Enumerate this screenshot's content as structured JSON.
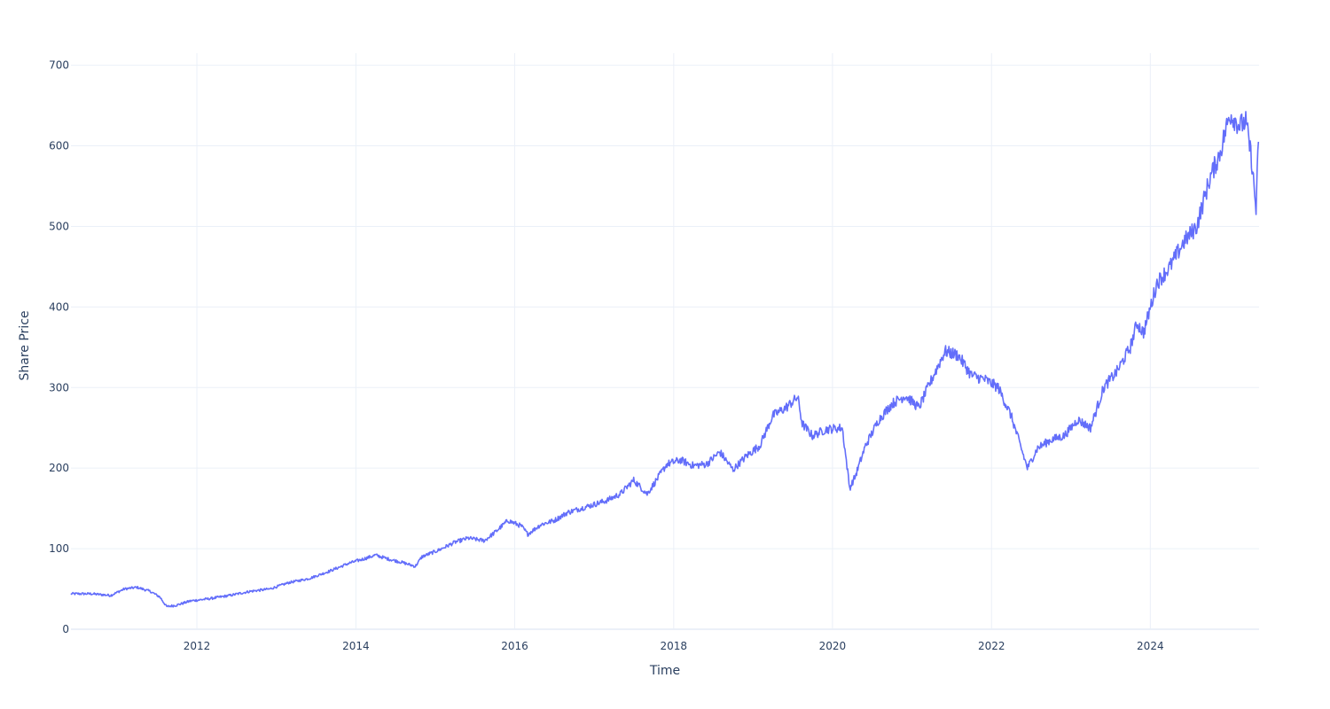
{
  "chart_data": {
    "type": "line",
    "title": "",
    "xlabel": "Time",
    "ylabel": "Share Price",
    "x_type": "date",
    "xlim": [
      "2010-06-01",
      "2025-05-15"
    ],
    "ylim": [
      0,
      715
    ],
    "x_ticks": [
      "2012",
      "2014",
      "2016",
      "2018",
      "2020",
      "2022",
      "2024"
    ],
    "y_ticks": [
      0,
      100,
      200,
      300,
      400,
      500,
      600,
      700
    ],
    "grid": true,
    "legend": "none",
    "line_color": "#636efa",
    "series": [
      {
        "x": [
          "2010-06-01",
          "2010-09-01",
          "2010-12-01",
          "2011-02-01",
          "2011-04-01",
          "2011-06-01",
          "2011-07-15",
          "2011-08-15",
          "2011-10-01",
          "2011-12-01",
          "2012-03-01",
          "2012-06-01",
          "2012-09-01",
          "2012-12-01",
          "2013-03-01",
          "2013-06-01",
          "2013-09-01",
          "2013-12-01",
          "2014-02-15",
          "2014-04-01",
          "2014-06-01",
          "2014-08-01",
          "2014-10-01",
          "2014-11-01",
          "2015-01-15",
          "2015-04-01",
          "2015-06-01",
          "2015-08-15",
          "2015-10-01",
          "2015-12-01",
          "2016-02-01",
          "2016-03-01",
          "2016-05-01",
          "2016-07-01",
          "2016-09-01",
          "2016-11-01",
          "2017-01-01",
          "2017-03-01",
          "2017-05-01",
          "2017-07-01",
          "2017-09-01",
          "2017-10-01",
          "2017-12-01",
          "2018-02-01",
          "2018-04-01",
          "2018-06-01",
          "2018-08-01",
          "2018-10-01",
          "2018-12-01",
          "2019-02-01",
          "2019-04-01",
          "2019-06-01",
          "2019-07-25",
          "2019-08-15",
          "2019-10-01",
          "2019-12-01",
          "2020-02-15",
          "2020-03-20",
          "2020-04-15",
          "2020-06-01",
          "2020-08-01",
          "2020-10-01",
          "2020-12-01",
          "2021-02-01",
          "2021-04-01",
          "2021-06-01",
          "2021-08-01",
          "2021-10-01",
          "2021-12-01",
          "2022-02-01",
          "2022-04-01",
          "2022-06-15",
          "2022-08-01",
          "2022-10-01",
          "2022-12-01",
          "2023-02-01",
          "2023-04-01",
          "2023-06-01",
          "2023-08-01",
          "2023-10-01",
          "2023-11-01",
          "2023-12-01",
          "2024-02-01",
          "2024-04-01",
          "2024-06-01",
          "2024-08-01",
          "2024-10-01",
          "2024-11-15",
          "2025-01-01",
          "2025-02-15",
          "2025-03-15",
          "2025-04-10",
          "2025-05-01",
          "2025-05-12"
        ],
        "y": [
          44,
          44,
          42,
          50,
          52,
          47,
          40,
          28,
          30,
          35,
          38,
          42,
          47,
          50,
          58,
          63,
          72,
          82,
          88,
          92,
          87,
          83,
          78,
          90,
          98,
          108,
          113,
          110,
          120,
          135,
          128,
          118,
          130,
          135,
          145,
          150,
          155,
          160,
          168,
          185,
          168,
          180,
          205,
          210,
          203,
          205,
          220,
          198,
          215,
          228,
          265,
          275,
          288,
          255,
          240,
          248,
          250,
          175,
          190,
          228,
          260,
          280,
          290,
          275,
          310,
          345,
          340,
          315,
          310,
          300,
          265,
          200,
          225,
          235,
          240,
          260,
          250,
          300,
          320,
          350,
          380,
          368,
          430,
          450,
          480,
          500,
          560,
          590,
          640,
          625,
          630,
          585,
          520,
          605
        ]
      }
    ]
  }
}
